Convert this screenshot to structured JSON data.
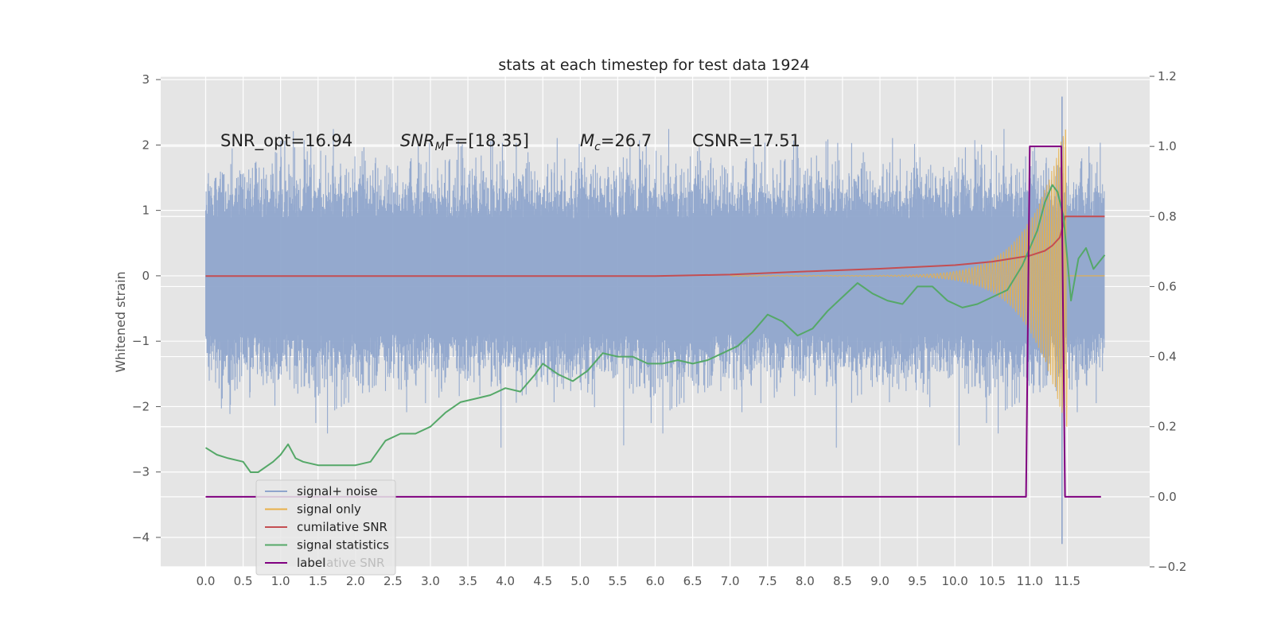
{
  "chart_data": {
    "type": "line",
    "title": "stats at each timestep for test data 1924",
    "ylabel_left": "Whitened strain",
    "ylabel_right": "",
    "xlim": [
      -0.6,
      12.6
    ],
    "ylim_left": [
      -4.45,
      3.05
    ],
    "ylim_right": [
      -0.2,
      1.2
    ],
    "x_ticks": [
      "0.0",
      "0.5",
      "1.0",
      "1.5",
      "2.0",
      "2.5",
      "3.0",
      "3.5",
      "4.0",
      "4.5",
      "5.0",
      "5.5",
      "6.0",
      "6.5",
      "7.0",
      "7.5",
      "8.0",
      "8.5",
      "9.0",
      "9.5",
      "10.0",
      "10.5",
      "11.0",
      "11.5"
    ],
    "y_ticks_left": [
      "3",
      "2",
      "1",
      "0",
      "−1",
      "−2",
      "−3",
      "−4"
    ],
    "y_ticks_right": [
      "1.2",
      "1.0",
      "0.8",
      "0.6",
      "0.4",
      "0.2",
      "0.0",
      "−0.2"
    ],
    "grid": true,
    "legend_position": "lower-left",
    "annotations": [
      {
        "text": "SNR_opt=16.94"
      },
      {
        "text_parts": [
          "SNR",
          "M",
          "F=[18.35]"
        ]
      },
      {
        "text_parts": [
          "M",
          "c",
          "=26.7"
        ]
      },
      {
        "text": "CSNR=17.51"
      }
    ],
    "ghost_text": "lative SNR",
    "series": [
      {
        "name": "signal+ noise",
        "color": "#8fa5cc",
        "axis": "left",
        "kind": "noise",
        "x_range": [
          0.0,
          12.0
        ],
        "envelope": [
          -1.6,
          1.6
        ],
        "peaks": [
          2.6,
          -2.7
        ],
        "outlier_range": [
          2.74,
          -4.1
        ]
      },
      {
        "name": "signal only",
        "color": "#e8b04a",
        "axis": "left",
        "kind": "chirp",
        "x_range": [
          7.0,
          11.5
        ],
        "max_amplitude": 2.45
      },
      {
        "name": "cumilative SNR",
        "color": "#c44e52",
        "axis": "right",
        "x": [
          0.0,
          6.0,
          7.0,
          8.0,
          9.0,
          10.0,
          10.5,
          11.0,
          11.2,
          11.3,
          11.4,
          11.45,
          11.47,
          12.0
        ],
        "y": [
          0.63,
          0.63,
          0.634,
          0.643,
          0.651,
          0.661,
          0.671,
          0.688,
          0.702,
          0.717,
          0.74,
          0.78,
          0.8,
          0.8
        ]
      },
      {
        "name": "signal statistics",
        "color": "#55a868",
        "axis": "right",
        "x": [
          0.0,
          0.15,
          0.3,
          0.5,
          0.6,
          0.7,
          0.9,
          1.0,
          1.1,
          1.2,
          1.3,
          1.5,
          1.7,
          2.0,
          2.2,
          2.4,
          2.6,
          2.8,
          3.0,
          3.2,
          3.4,
          3.6,
          3.8,
          4.0,
          4.2,
          4.4,
          4.5,
          4.7,
          4.9,
          5.1,
          5.3,
          5.5,
          5.7,
          5.9,
          6.1,
          6.3,
          6.5,
          6.7,
          6.9,
          7.1,
          7.3,
          7.5,
          7.7,
          7.9,
          8.1,
          8.3,
          8.5,
          8.7,
          8.9,
          9.1,
          9.3,
          9.5,
          9.7,
          9.9,
          10.1,
          10.3,
          10.5,
          10.7,
          10.9,
          11.1,
          11.2,
          11.3,
          11.37,
          11.45,
          11.55,
          11.65,
          11.75,
          11.85,
          12.0
        ],
        "y": [
          0.14,
          0.12,
          0.11,
          0.1,
          0.07,
          0.07,
          0.1,
          0.12,
          0.15,
          0.11,
          0.1,
          0.09,
          0.09,
          0.09,
          0.1,
          0.16,
          0.18,
          0.18,
          0.2,
          0.24,
          0.27,
          0.28,
          0.29,
          0.31,
          0.3,
          0.35,
          0.38,
          0.35,
          0.33,
          0.36,
          0.41,
          0.4,
          0.4,
          0.38,
          0.38,
          0.39,
          0.38,
          0.39,
          0.41,
          0.43,
          0.47,
          0.52,
          0.5,
          0.46,
          0.48,
          0.53,
          0.57,
          0.61,
          0.58,
          0.56,
          0.55,
          0.6,
          0.6,
          0.56,
          0.54,
          0.55,
          0.57,
          0.59,
          0.66,
          0.76,
          0.84,
          0.89,
          0.87,
          0.8,
          0.56,
          0.68,
          0.71,
          0.65,
          0.69
        ]
      },
      {
        "name": "label",
        "color": "#800080",
        "axis": "right",
        "x": [
          0.0,
          10.95,
          11.0,
          11.42,
          11.47,
          11.95
        ],
        "y": [
          0.0,
          0.0,
          1.0,
          1.0,
          0.0,
          0.0
        ]
      }
    ]
  }
}
